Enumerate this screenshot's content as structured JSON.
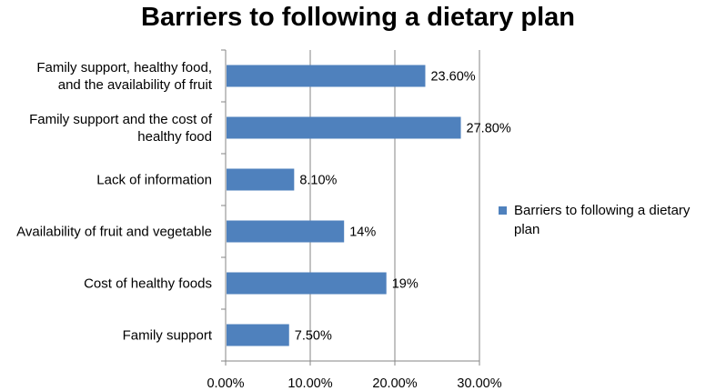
{
  "chart_data": {
    "type": "bar",
    "orientation": "horizontal",
    "title": "Barriers to following a dietary plan",
    "categories": [
      [
        "Family support, healthy food,",
        "and the availability of fruit"
      ],
      [
        "Family support and the cost of",
        "healthy food"
      ],
      [
        "Lack of information"
      ],
      [
        "Availability of fruit and vegetable"
      ],
      [
        "Cost of healthy foods"
      ],
      [
        "Family support"
      ]
    ],
    "series": [
      {
        "name": "Barriers to following a dietary plan",
        "values": [
          23.6,
          27.8,
          8.1,
          14,
          19,
          7.5
        ],
        "data_labels": [
          "23.60%",
          "27.80%",
          "8.10%",
          "14%",
          "19%",
          "7.50%"
        ]
      }
    ],
    "xlim": [
      0,
      30
    ],
    "x_ticks": [
      0,
      10,
      20,
      30
    ],
    "x_tick_labels": [
      "0.00%",
      "10.00%",
      "20.00%",
      "30.00%"
    ],
    "grid": true,
    "legend": "right",
    "legend_lines": [
      "Barriers to following a dietary",
      "plan"
    ],
    "xlabel": "",
    "ylabel": ""
  },
  "colors": {
    "bar": "#4F81BD",
    "grid": "#868686",
    "axis": "#868686"
  }
}
